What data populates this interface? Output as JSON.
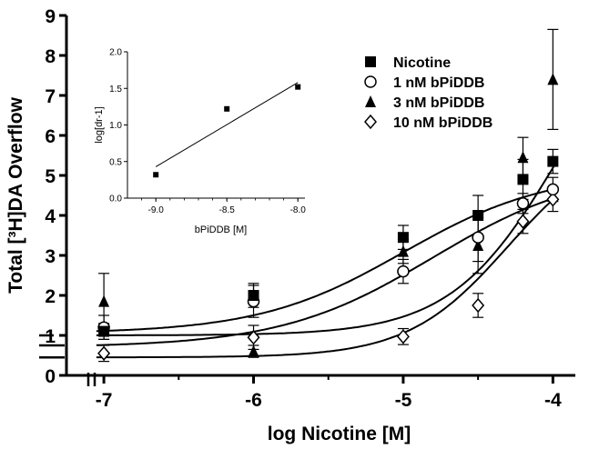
{
  "chart_data": [
    {
      "type": "scatter",
      "xlabel": "log Nicotine [M]",
      "ylabel": "Total [³H]DA Overflow",
      "xlim": [
        -7.25,
        -3.85
      ],
      "ylim": [
        0,
        9
      ],
      "x_ticks": [
        "-7",
        "-6",
        "-5",
        "-4"
      ],
      "y_ticks": [
        "0",
        "1",
        "2",
        "3",
        "4",
        "5",
        "6",
        "7",
        "8",
        "9"
      ],
      "legend_position": "top-right",
      "series": [
        {
          "name": "Nicotine",
          "marker": "filled-square",
          "x": [
            -7,
            -6,
            -5,
            -4.5,
            -4.2,
            -4
          ],
          "y": [
            1.1,
            2.0,
            3.45,
            4.0,
            4.9,
            5.35
          ],
          "err": [
            0.2,
            0.3,
            0.3,
            0.5,
            0.5,
            0.3
          ],
          "fit_curve": {
            "bottom": 1.05,
            "top": 5.1,
            "logEC50": -5.0,
            "hill": 0.9
          }
        },
        {
          "name": "1 nM  bPiDDB",
          "marker": "open-circle",
          "x": [
            -7,
            -6,
            -5,
            -4.5,
            -4.2,
            -4
          ],
          "y": [
            1.2,
            1.85,
            2.6,
            3.45,
            4.3,
            4.65
          ],
          "err": [
            0.3,
            0.4,
            0.3,
            0.6,
            0.25,
            0.3
          ],
          "fit_curve": {
            "bottom": 0.7,
            "top": 5.2,
            "logEC50": -4.8,
            "hill": 0.85
          }
        },
        {
          "name": "3 nM  bPiDDB",
          "marker": "filled-triangle",
          "x": [
            -7,
            -6,
            -5,
            -4.5,
            -4.2,
            -4
          ],
          "y": [
            1.85,
            0.6,
            3.1,
            3.25,
            5.45,
            7.4
          ],
          "err": [
            0.7,
            0.15,
            0.3,
            0.7,
            0.5,
            1.25
          ],
          "fit_curve": {
            "bottom": 1.0,
            "top": 10.0,
            "logEC50": -3.95,
            "hill": 1.2
          }
        },
        {
          "name": "10 nM  bPiDDB",
          "marker": "open-diamond",
          "x": [
            -7,
            -6,
            -5,
            -4.5,
            -4.2,
            -4
          ],
          "y": [
            0.55,
            0.95,
            0.97,
            1.75,
            3.85,
            4.4
          ],
          "err": [
            0.2,
            0.3,
            0.2,
            0.3,
            0.3,
            0.3
          ],
          "fit_curve": {
            "bottom": 0.45,
            "top": 6.0,
            "logEC50": -4.3,
            "hill": 1.3
          }
        }
      ]
    },
    {
      "type": "scatter",
      "position": "inset top-left",
      "xlabel": "bPiDDB [M]",
      "ylabel": "log[dr-1]",
      "xlim": [
        -9.2,
        -7.95
      ],
      "ylim": [
        0,
        2.0
      ],
      "x_ticks": [
        "-9.0",
        "-8.5",
        "-8.0"
      ],
      "y_ticks": [
        "0.0",
        "0.5",
        "1.0",
        "1.5",
        "2.0"
      ],
      "series": [
        {
          "name": "",
          "marker": "filled-square",
          "x": [
            -9.0,
            -8.5,
            -8.0
          ],
          "y": [
            0.32,
            1.22,
            1.52
          ],
          "fit_line": {
            "x": [
              -9.0,
              -8.0
            ],
            "y": [
              0.43,
              1.58
            ]
          }
        }
      ]
    }
  ]
}
